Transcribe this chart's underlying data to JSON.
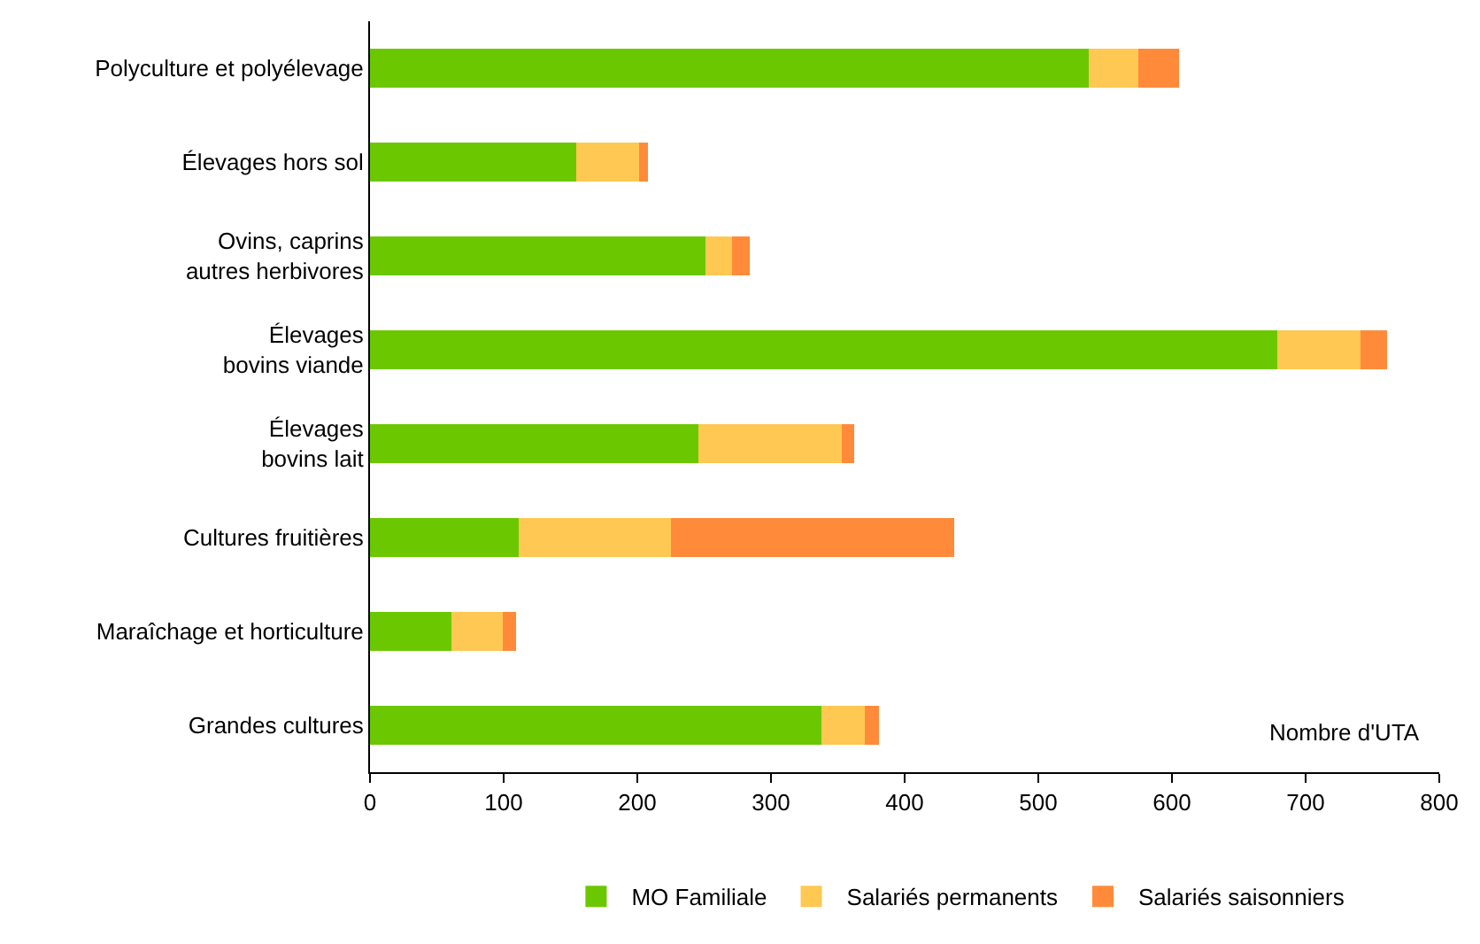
{
  "chart_data": {
    "type": "bar",
    "orientation": "horizontal",
    "stacked": true,
    "categories": [
      "Polyculture et polyélevage",
      "Élevages hors sol",
      "Ovins, caprins\nautres herbivores",
      "Élevages\nbovins viande",
      "Élevages\nbovins lait",
      "Cultures fruitières",
      "Maraîchage et horticulture",
      "Grandes cultures"
    ],
    "series": [
      {
        "name": "MO Familiale",
        "color": "#6bc800",
        "values": [
          538,
          154,
          251,
          679,
          246,
          111,
          61,
          338
        ]
      },
      {
        "name": "Salariés permanents",
        "color": "#ffc853",
        "values": [
          37,
          47,
          20,
          62,
          107,
          114,
          38,
          32
        ]
      },
      {
        "name": "Salariés saisonniers",
        "color": "#ff8b3a",
        "values": [
          30,
          7,
          13,
          20,
          9,
          212,
          10,
          11
        ]
      }
    ],
    "xlabel": "Nombre d'UTA",
    "xlim": [
      0,
      800
    ],
    "xticks": [
      0,
      100,
      200,
      300,
      400,
      500,
      600,
      700,
      800
    ],
    "legend": "bottom"
  }
}
